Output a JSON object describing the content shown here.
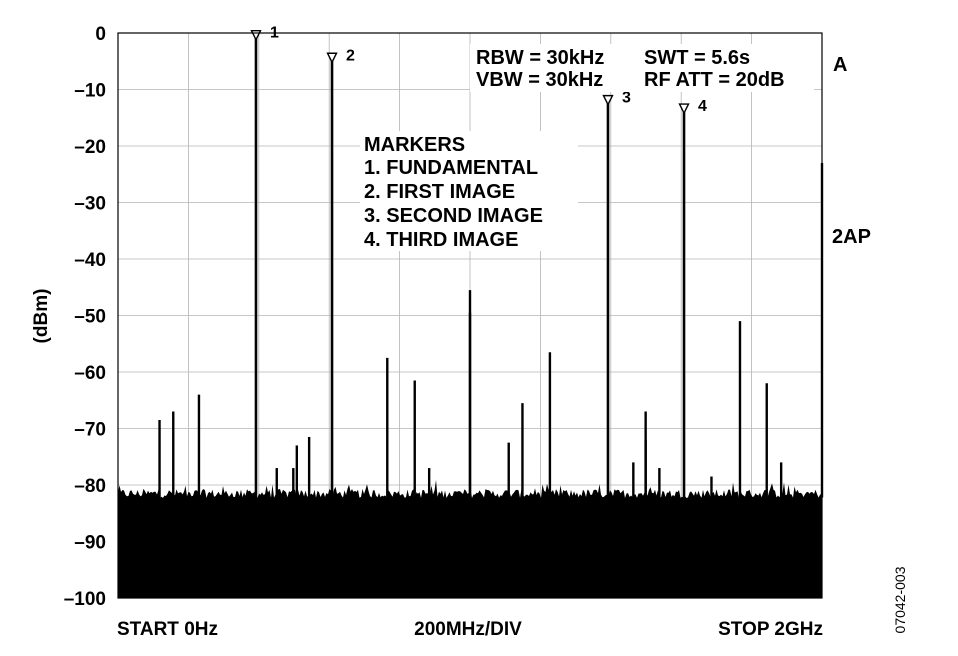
{
  "chart_data": {
    "type": "spectrum",
    "ylabel": "(dBm)",
    "ylim": [
      -100,
      0
    ],
    "yticks": [
      "0",
      "–10",
      "–20",
      "–30",
      "–40",
      "–50",
      "–60",
      "–70",
      "–80",
      "–90",
      "–100"
    ],
    "xlim": [
      0,
      2000
    ],
    "x_unit": "MHz",
    "grid": true,
    "grid_divisions_x": 10,
    "grid_divisions_y": 10,
    "x_labels": {
      "start": "START 0Hz",
      "center": "200MHz/DIV",
      "stop": "STOP 2GHz"
    },
    "settings": {
      "rbw": "RBW = 30kHz",
      "vbw": "VBW = 30kHz",
      "swt": "SWT = 5.6s",
      "att": "RF ATT = 20dB"
    },
    "side_labels": {
      "trace": "A",
      "detector": "2AP"
    },
    "figure_code": "07042-003",
    "legend": {
      "title": "MARKERS",
      "entries": [
        "1. FUNDAMENTAL",
        "2. FIRST IMAGE",
        "3. SECOND IMAGE",
        "4. THIRD IMAGE"
      ]
    },
    "noise_floor_dbm": -81.5,
    "markers": [
      {
        "label": "1",
        "x": 392,
        "y": -1
      },
      {
        "label": "2",
        "x": 608,
        "y": -5
      },
      {
        "label": "3",
        "x": 1392,
        "y": -12.5
      },
      {
        "label": "4",
        "x": 1608,
        "y": -14
      }
    ],
    "spurs": [
      {
        "x": 118,
        "y": -68.5
      },
      {
        "x": 157,
        "y": -67
      },
      {
        "x": 230,
        "y": -64
      },
      {
        "x": 451,
        "y": -77
      },
      {
        "x": 498,
        "y": -77
      },
      {
        "x": 508,
        "y": -73
      },
      {
        "x": 543,
        "y": -71.5
      },
      {
        "x": 765,
        "y": -57.5
      },
      {
        "x": 843,
        "y": -61.5
      },
      {
        "x": 884,
        "y": -77
      },
      {
        "x": 1000,
        "y": -45.5
      },
      {
        "x": 1000,
        "y": -49.5
      },
      {
        "x": 1110,
        "y": -72.5
      },
      {
        "x": 1149,
        "y": -65.5
      },
      {
        "x": 1227,
        "y": -56.5
      },
      {
        "x": 1464,
        "y": -76
      },
      {
        "x": 1499,
        "y": -67
      },
      {
        "x": 1499,
        "y": -72
      },
      {
        "x": 1538,
        "y": -77
      },
      {
        "x": 1686,
        "y": -78.5
      },
      {
        "x": 1767,
        "y": -51
      },
      {
        "x": 1843,
        "y": -62
      },
      {
        "x": 1884,
        "y": -76
      },
      {
        "x": 2000,
        "y": -23
      }
    ]
  }
}
